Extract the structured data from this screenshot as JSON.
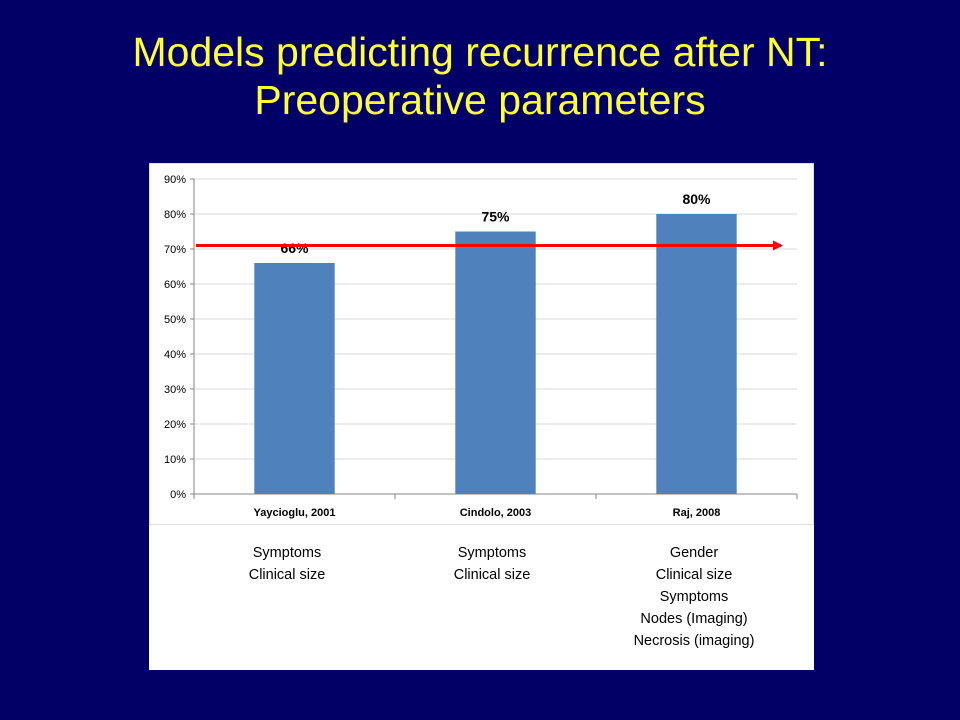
{
  "slide": {
    "title_line1": "Models predicting recurrence after NT:",
    "title_line2": "Preoperative parameters"
  },
  "colors": {
    "background": "#000066",
    "title": "#ffff33",
    "bar": "#4f81bd",
    "reference_arrow": "#ff0000"
  },
  "chart_data": {
    "type": "bar",
    "categories": [
      "Yaycioglu, 2001",
      "Cindolo, 2003",
      "Raj, 2008"
    ],
    "values": [
      66,
      75,
      80
    ],
    "data_labels": [
      "66%",
      "75%",
      "80%"
    ],
    "ylim": [
      0,
      90
    ],
    "y_ticks": [
      0,
      10,
      20,
      30,
      40,
      50,
      60,
      70,
      80,
      90
    ],
    "y_tick_labels": [
      "0%",
      "10%",
      "20%",
      "30%",
      "40%",
      "50%",
      "60%",
      "70%",
      "80%",
      "90%"
    ],
    "grid": true,
    "reference_line": {
      "value": 71,
      "style": "arrow"
    }
  },
  "factors": [
    {
      "model": "Yaycioglu, 2001",
      "items": [
        "Symptoms",
        "Clinical size"
      ]
    },
    {
      "model": "Cindolo, 2003",
      "items": [
        "Symptoms",
        "Clinical size"
      ]
    },
    {
      "model": "Raj, 2008",
      "items": [
        "Gender",
        "Clinical size",
        "Symptoms",
        "Nodes (Imaging)",
        "Necrosis (imaging)"
      ]
    }
  ]
}
